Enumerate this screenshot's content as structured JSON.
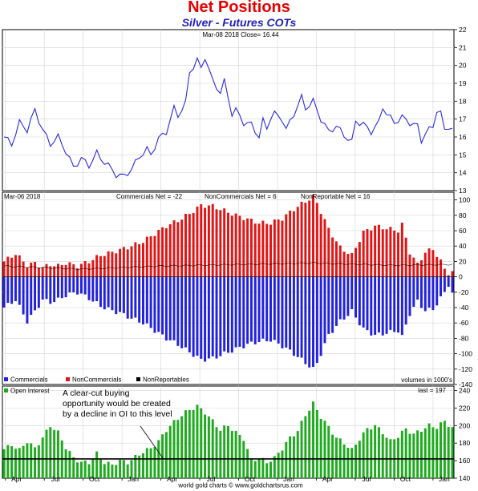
{
  "title": "Net Positions",
  "subtitle": "Silver - Futures COTs",
  "footer": "world gold charts © www.goldchartsrus.com",
  "colors": {
    "price_line": "#2a2ae0",
    "commercials": "#2222dd",
    "noncommercials": "#e01515",
    "open_interest": "#1faa1f",
    "threshold_line": "#000000",
    "title": "#e60000",
    "subtitle": "#1f1fbf"
  },
  "chart_data": [
    {
      "type": "line",
      "panel": "price",
      "header": "Mar-08 2018  Close= 16.44",
      "ylim": [
        13,
        22
      ],
      "yticks": [
        13,
        14,
        15,
        16,
        17,
        18,
        19,
        20,
        21,
        22
      ],
      "grid": true,
      "anchors": [
        [
          0,
          16.0
        ],
        [
          2,
          15.6
        ],
        [
          4,
          16.8
        ],
        [
          6,
          16.4
        ],
        [
          8,
          17.5
        ],
        [
          10,
          16.4
        ],
        [
          12,
          15.6
        ],
        [
          14,
          16.0
        ],
        [
          16,
          15.2
        ],
        [
          18,
          14.3
        ],
        [
          20,
          14.8
        ],
        [
          22,
          14.4
        ],
        [
          24,
          15.1
        ],
        [
          25,
          14.8
        ],
        [
          27,
          14.4
        ],
        [
          29,
          13.9
        ],
        [
          31,
          13.8
        ],
        [
          33,
          14.2
        ],
        [
          35,
          14.9
        ],
        [
          37,
          15.3
        ],
        [
          38,
          15.0
        ],
        [
          40,
          15.9
        ],
        [
          42,
          16.3
        ],
        [
          44,
          17.6
        ],
        [
          45,
          17.2
        ],
        [
          47,
          17.9
        ],
        [
          48,
          19.6
        ],
        [
          50,
          20.3
        ],
        [
          51,
          19.8
        ],
        [
          52,
          20.5
        ],
        [
          54,
          19.1
        ],
        [
          56,
          18.5
        ],
        [
          57,
          19.1
        ],
        [
          58,
          18.2
        ],
        [
          59,
          17.3
        ],
        [
          60,
          17.5
        ],
        [
          62,
          16.8
        ],
        [
          64,
          16.7
        ],
        [
          66,
          16.0
        ],
        [
          67,
          16.9
        ],
        [
          68,
          16.5
        ],
        [
          69,
          17.1
        ],
        [
          70,
          17.3
        ],
        [
          72,
          17.0
        ],
        [
          73,
          16.4
        ],
        [
          75,
          17.3
        ],
        [
          77,
          18.2
        ],
        [
          78,
          17.6
        ],
        [
          80,
          18.0
        ],
        [
          82,
          17.0
        ],
        [
          84,
          16.3
        ],
        [
          86,
          16.6
        ],
        [
          88,
          16.1
        ],
        [
          90,
          15.7
        ],
        [
          91,
          16.9
        ],
        [
          93,
          16.7
        ],
        [
          95,
          16.3
        ],
        [
          97,
          16.8
        ],
        [
          98,
          17.7
        ],
        [
          99,
          17.3
        ],
        [
          101,
          16.8
        ],
        [
          103,
          17.1
        ],
        [
          105,
          16.8
        ],
        [
          107,
          16.6
        ],
        [
          108,
          15.8
        ],
        [
          109,
          16.2
        ],
        [
          111,
          16.6
        ],
        [
          112,
          17.5
        ],
        [
          113,
          17.3
        ],
        [
          114,
          16.4
        ],
        [
          115,
          16.6
        ],
        [
          116,
          16.4
        ]
      ]
    },
    {
      "type": "bar",
      "panel": "cot",
      "header_date": "Mar-06 2018",
      "header_labels": [
        "Commercials Net = -22",
        "NonCommercials Net = 6",
        "NonReportable Net = 16"
      ],
      "legend": [
        "Commercials",
        "NonCommercials",
        "NonReportables"
      ],
      "corner_note": "volumes in 1000's",
      "ylim": [
        -140,
        110
      ],
      "yticks": [
        -140,
        -120,
        -100,
        -80,
        -60,
        -40,
        -20,
        0,
        20,
        40,
        60,
        80,
        100
      ],
      "grid": true,
      "commercials_anchors": [
        [
          0,
          -40
        ],
        [
          3,
          -30
        ],
        [
          6,
          -58
        ],
        [
          8,
          -45
        ],
        [
          10,
          -30
        ],
        [
          12,
          -33
        ],
        [
          14,
          -30
        ],
        [
          16,
          -24
        ],
        [
          19,
          -20
        ],
        [
          22,
          -28
        ],
        [
          25,
          -38
        ],
        [
          28,
          -44
        ],
        [
          30,
          -47
        ],
        [
          33,
          -54
        ],
        [
          36,
          -60
        ],
        [
          39,
          -70
        ],
        [
          42,
          -80
        ],
        [
          45,
          -88
        ],
        [
          48,
          -98
        ],
        [
          51,
          -108
        ],
        [
          54,
          -106
        ],
        [
          57,
          -100
        ],
        [
          60,
          -94
        ],
        [
          63,
          -88
        ],
        [
          66,
          -84
        ],
        [
          69,
          -82
        ],
        [
          72,
          -90
        ],
        [
          75,
          -100
        ],
        [
          78,
          -112
        ],
        [
          80,
          -120
        ],
        [
          81,
          -112
        ],
        [
          84,
          -76
        ],
        [
          87,
          -58
        ],
        [
          90,
          -45
        ],
        [
          93,
          -68
        ],
        [
          96,
          -76
        ],
        [
          99,
          -73
        ],
        [
          102,
          -70
        ],
        [
          103,
          -78
        ],
        [
          105,
          -48
        ],
        [
          107,
          -32
        ],
        [
          109,
          -44
        ],
        [
          111,
          -42
        ],
        [
          113,
          -28
        ],
        [
          114,
          -20
        ],
        [
          115,
          -10
        ],
        [
          116,
          -22
        ]
      ],
      "noncommercials_anchors": [
        [
          0,
          20
        ],
        [
          3,
          30
        ],
        [
          6,
          15
        ],
        [
          8,
          18
        ],
        [
          10,
          12
        ],
        [
          12,
          16
        ],
        [
          14,
          14
        ],
        [
          16,
          18
        ],
        [
          19,
          14
        ],
        [
          22,
          20
        ],
        [
          25,
          28
        ],
        [
          28,
          32
        ],
        [
          30,
          35
        ],
        [
          33,
          40
        ],
        [
          36,
          46
        ],
        [
          39,
          56
        ],
        [
          42,
          66
        ],
        [
          45,
          73
        ],
        [
          48,
          82
        ],
        [
          51,
          93
        ],
        [
          54,
          92
        ],
        [
          57,
          86
        ],
        [
          60,
          80
        ],
        [
          63,
          75
        ],
        [
          66,
          70
        ],
        [
          69,
          70
        ],
        [
          72,
          76
        ],
        [
          75,
          88
        ],
        [
          78,
          98
        ],
        [
          80,
          104
        ],
        [
          81,
          96
        ],
        [
          84,
          62
        ],
        [
          87,
          38
        ],
        [
          90,
          28
        ],
        [
          93,
          58
        ],
        [
          96,
          66
        ],
        [
          99,
          63
        ],
        [
          102,
          60
        ],
        [
          103,
          68
        ],
        [
          105,
          32
        ],
        [
          107,
          16
        ],
        [
          109,
          32
        ],
        [
          111,
          36
        ],
        [
          113,
          20
        ],
        [
          114,
          10
        ],
        [
          115,
          5
        ],
        [
          116,
          6
        ]
      ],
      "nonreportables_anchors": [
        [
          0,
          14
        ],
        [
          20,
          10
        ],
        [
          40,
          14
        ],
        [
          60,
          16
        ],
        [
          80,
          18
        ],
        [
          100,
          15
        ],
        [
          116,
          16
        ]
      ]
    },
    {
      "type": "bar",
      "panel": "open_interest",
      "legend": [
        "Open Interest"
      ],
      "corner_note": "last = 197",
      "ylim": [
        140,
        245
      ],
      "yticks": [
        140,
        160,
        180,
        200,
        220,
        240
      ],
      "grid": true,
      "threshold": 162,
      "annotation": [
        "A clear-cut buying",
        "opportunity would be created",
        "by a decline in OI to this level"
      ],
      "anchors": [
        [
          0,
          173
        ],
        [
          2,
          178
        ],
        [
          4,
          172
        ],
        [
          6,
          182
        ],
        [
          8,
          174
        ],
        [
          10,
          186
        ],
        [
          12,
          200
        ],
        [
          14,
          192
        ],
        [
          16,
          175
        ],
        [
          18,
          163
        ],
        [
          20,
          158
        ],
        [
          22,
          158
        ],
        [
          24,
          168
        ],
        [
          26,
          158
        ],
        [
          28,
          155
        ],
        [
          30,
          160
        ],
        [
          32,
          158
        ],
        [
          34,
          164
        ],
        [
          36,
          170
        ],
        [
          38,
          174
        ],
        [
          40,
          182
        ],
        [
          42,
          195
        ],
        [
          44,
          204
        ],
        [
          46,
          212
        ],
        [
          48,
          218
        ],
        [
          50,
          222
        ],
        [
          52,
          215
        ],
        [
          54,
          205
        ],
        [
          56,
          195
        ],
        [
          58,
          200
        ],
        [
          60,
          192
        ],
        [
          62,
          185
        ],
        [
          64,
          160
        ],
        [
          66,
          163
        ],
        [
          68,
          158
        ],
        [
          70,
          163
        ],
        [
          72,
          174
        ],
        [
          74,
          186
        ],
        [
          76,
          194
        ],
        [
          78,
          212
        ],
        [
          80,
          225
        ],
        [
          82,
          210
        ],
        [
          84,
          198
        ],
        [
          86,
          186
        ],
        [
          88,
          180
        ],
        [
          90,
          172
        ],
        [
          92,
          185
        ],
        [
          94,
          196
        ],
        [
          96,
          200
        ],
        [
          98,
          192
        ],
        [
          100,
          182
        ],
        [
          102,
          188
        ],
        [
          104,
          196
        ],
        [
          106,
          190
        ],
        [
          108,
          195
        ],
        [
          110,
          200
        ],
        [
          112,
          198
        ],
        [
          114,
          205
        ],
        [
          116,
          197
        ]
      ],
      "x_tick_labels": [
        "Apr",
        "Jul",
        "Oct",
        "Jan",
        "Apr",
        "Jul",
        "Oct",
        "Jan",
        "Apr",
        "Jul",
        "Oct",
        "Jan"
      ],
      "x_tick_weeks": [
        1,
        14,
        27,
        40,
        53,
        66,
        79,
        92,
        105,
        118,
        131,
        144
      ]
    }
  ]
}
